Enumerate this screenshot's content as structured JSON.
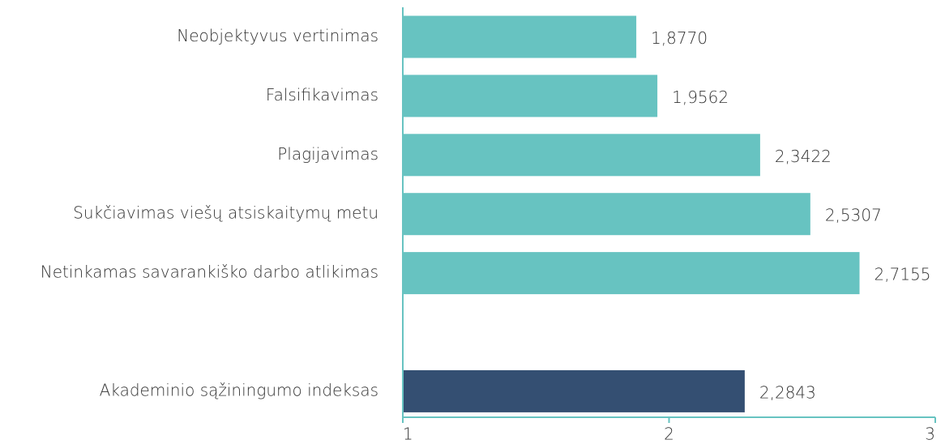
{
  "chart_data": {
    "type": "hbar",
    "categories": [
      "Neobjektyvus vertinimas",
      "Falsifikavimas",
      "Plagijavimas",
      "Sukčiavimas viešų atsiskaitymų metu",
      "Netinkamas savarankiško darbo atlikimas",
      null,
      "Akademinio sąžiningumo indeksas"
    ],
    "values": [
      1.877,
      1.9562,
      2.3422,
      2.5307,
      2.7155,
      null,
      2.2843
    ],
    "value_labels": [
      "1,8770",
      "1,9562",
      "2,3422",
      "2,5307",
      "2,7155",
      null,
      "2,2843"
    ],
    "colors": [
      "#67c3c1",
      "#67c3c1",
      "#67c3c1",
      "#67c3c1",
      "#67c3c1",
      null,
      "#344f72"
    ],
    "xlim": [
      1,
      3
    ],
    "xticks": [
      1,
      2,
      3
    ],
    "axis_color": "#67c3c1"
  }
}
